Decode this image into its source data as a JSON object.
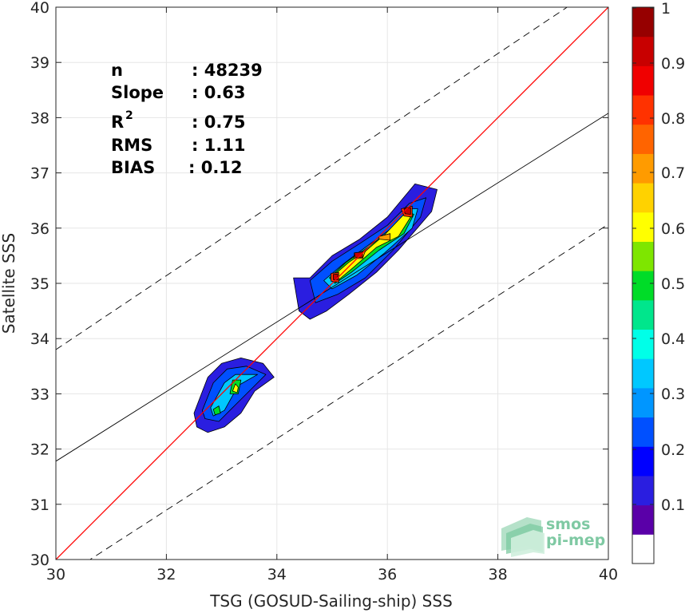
{
  "chart_data": {
    "type": "contour",
    "xlabel": "TSG (GOSUD-Sailing-ship) SSS",
    "ylabel": "Satellite SSS",
    "xlim": [
      30,
      40
    ],
    "ylim": [
      30,
      40
    ],
    "xticks": [
      "30",
      "32",
      "34",
      "36",
      "38",
      "40"
    ],
    "yticks": [
      "30",
      "31",
      "32",
      "33",
      "34",
      "35",
      "36",
      "37",
      "38",
      "39",
      "40"
    ],
    "grid": true,
    "one_to_one_line": {
      "x": [
        30,
        40
      ],
      "y": [
        30,
        40
      ],
      "color": "#ff0000"
    },
    "regression_line": {
      "x": [
        30,
        40
      ],
      "y": [
        31.78,
        38.08
      ],
      "color": "#000000"
    },
    "dashed_bounds": [
      {
        "x": [
          30,
          40
        ],
        "y": [
          33.8,
          40.5
        ]
      },
      {
        "x": [
          30,
          40
        ],
        "y": [
          29.6,
          36.07
        ]
      }
    ],
    "stats": [
      {
        "label": "n",
        "value": ": 48239"
      },
      {
        "label": "Slope",
        "value": ": 0.63"
      },
      {
        "label": "R",
        "sup": "2",
        "value": ": 0.75"
      },
      {
        "label": "RMS",
        "value": ": 1.11"
      },
      {
        "label": "BIAS",
        "value": ": 0.12"
      }
    ],
    "colorbar": {
      "ticks": [
        "0.1",
        "0.2",
        "0.3",
        "0.4",
        "0.5",
        "0.6",
        "0.7",
        "0.8",
        "0.9",
        "1"
      ],
      "colors": [
        "#ffffff",
        "#5a00a8",
        "#2a1ee0",
        "#0000ff",
        "#0050ff",
        "#0096ff",
        "#00c8ff",
        "#00ffe8",
        "#00e68c",
        "#00dc28",
        "#7ee600",
        "#ffff00",
        "#ffd200",
        "#ff9b00",
        "#ff6400",
        "#ff3200",
        "#f00000",
        "#c80000",
        "#960000"
      ]
    },
    "density_clusters": [
      {
        "center": [
          35.6,
          35.6
        ],
        "levels": [
          {
            "value": 0.05,
            "color": "#2a1ee0",
            "polygon": [
              [
                34.3,
                35.1
              ],
              [
                34.6,
                35.1
              ],
              [
                35.0,
                35.5
              ],
              [
                35.5,
                35.8
              ],
              [
                36.0,
                36.2
              ],
              [
                36.5,
                36.8
              ],
              [
                36.9,
                36.7
              ],
              [
                36.8,
                36.3
              ],
              [
                36.2,
                35.6
              ],
              [
                35.8,
                35.2
              ],
              [
                35.3,
                34.8
              ],
              [
                34.9,
                34.5
              ],
              [
                34.6,
                34.35
              ],
              [
                34.4,
                34.5
              ]
            ]
          },
          {
            "value": 0.2,
            "color": "#0050ff",
            "polygon": [
              [
                34.6,
                35.05
              ],
              [
                35.0,
                35.4
              ],
              [
                35.5,
                35.72
              ],
              [
                36.0,
                36.05
              ],
              [
                36.4,
                36.45
              ],
              [
                36.7,
                36.55
              ],
              [
                36.6,
                36.2
              ],
              [
                36.1,
                35.6
              ],
              [
                35.6,
                35.1
              ],
              [
                35.1,
                34.8
              ],
              [
                34.7,
                34.65
              ]
            ]
          },
          {
            "value": 0.35,
            "color": "#00c8ff",
            "polygon": [
              [
                34.85,
                35.05
              ],
              [
                35.2,
                35.35
              ],
              [
                35.6,
                35.65
              ],
              [
                36.05,
                35.98
              ],
              [
                36.4,
                36.35
              ],
              [
                36.55,
                36.35
              ],
              [
                36.45,
                36.0
              ],
              [
                35.95,
                35.55
              ],
              [
                35.45,
                35.15
              ],
              [
                35.0,
                34.9
              ]
            ]
          },
          {
            "value": 0.5,
            "color": "#00dc28",
            "polygon": [
              [
                34.95,
                35.1
              ],
              [
                35.25,
                35.38
              ],
              [
                35.6,
                35.62
              ],
              [
                36.0,
                35.92
              ],
              [
                36.35,
                36.3
              ],
              [
                36.48,
                36.25
              ],
              [
                36.3,
                35.9
              ],
              [
                35.85,
                35.6
              ],
              [
                35.35,
                35.2
              ],
              [
                35.05,
                35.0
              ]
            ]
          },
          {
            "value": 0.6,
            "color": "#ffff00",
            "polygon": [
              [
                35.0,
                35.12
              ],
              [
                35.3,
                35.38
              ],
              [
                35.6,
                35.58
              ],
              [
                35.95,
                35.88
              ],
              [
                36.3,
                36.25
              ],
              [
                36.42,
                36.2
              ],
              [
                36.2,
                35.85
              ],
              [
                35.8,
                35.65
              ],
              [
                35.4,
                35.3
              ],
              [
                35.1,
                35.05
              ]
            ]
          },
          {
            "value": 0.75,
            "color": "#ff9b00",
            "polygon": [
              [
                35.4,
                35.55
              ],
              [
                35.6,
                35.58
              ],
              [
                35.55,
                35.45
              ],
              [
                35.4,
                35.45
              ]
            ]
          },
          {
            "value": 0.75,
            "color": "#ff9b00",
            "polygon": [
              [
                35.85,
                35.85
              ],
              [
                36.05,
                35.9
              ],
              [
                36.05,
                35.78
              ],
              [
                35.85,
                35.8
              ]
            ]
          },
          {
            "value": 0.85,
            "color": "#ff3200",
            "polygon": [
              [
                36.25,
                36.35
              ],
              [
                36.45,
                36.4
              ],
              [
                36.45,
                36.2
              ],
              [
                36.3,
                36.22
              ]
            ]
          },
          {
            "value": 0.85,
            "color": "#ff3200",
            "polygon": [
              [
                34.98,
                35.18
              ],
              [
                35.12,
                35.2
              ],
              [
                35.12,
                35.02
              ],
              [
                34.98,
                35.04
              ]
            ]
          },
          {
            "value": 0.95,
            "color": "#c80000",
            "polygon": [
              [
                35.4,
                35.55
              ],
              [
                35.55,
                35.57
              ],
              [
                35.55,
                35.47
              ],
              [
                35.42,
                35.47
              ]
            ]
          },
          {
            "value": 0.95,
            "color": "#c80000",
            "polygon": [
              [
                36.3,
                36.35
              ],
              [
                36.42,
                36.37
              ],
              [
                36.42,
                36.25
              ],
              [
                36.32,
                36.26
              ]
            ]
          },
          {
            "value": 0.95,
            "color": "#c80000",
            "polygon": [
              [
                35.02,
                35.16
              ],
              [
                35.1,
                35.17
              ],
              [
                35.1,
                35.06
              ],
              [
                35.02,
                35.07
              ]
            ]
          }
        ]
      },
      {
        "center": [
          33.1,
          32.9
        ],
        "levels": [
          {
            "value": 0.05,
            "color": "#2a1ee0",
            "polygon": [
              [
                32.5,
                32.65
              ],
              [
                32.75,
                33.3
              ],
              [
                33.0,
                33.55
              ],
              [
                33.35,
                33.65
              ],
              [
                33.75,
                33.55
              ],
              [
                33.95,
                33.3
              ],
              [
                33.6,
                33.05
              ],
              [
                33.35,
                32.65
              ],
              [
                33.05,
                32.4
              ],
              [
                32.75,
                32.3
              ],
              [
                32.55,
                32.4
              ]
            ]
          },
          {
            "value": 0.2,
            "color": "#0050ff",
            "polygon": [
              [
                32.65,
                32.7
              ],
              [
                32.85,
                33.2
              ],
              [
                33.1,
                33.45
              ],
              [
                33.45,
                33.5
              ],
              [
                33.8,
                33.35
              ],
              [
                33.55,
                33.1
              ],
              [
                33.2,
                32.75
              ],
              [
                32.95,
                32.5
              ],
              [
                32.7,
                32.55
              ]
            ]
          },
          {
            "value": 0.35,
            "color": "#00c8ff",
            "polygon": [
              [
                32.8,
                32.75
              ],
              [
                33.05,
                33.2
              ],
              [
                33.25,
                33.35
              ],
              [
                33.65,
                33.35
              ],
              [
                33.3,
                33.15
              ],
              [
                33.05,
                32.7
              ],
              [
                32.85,
                32.6
              ]
            ]
          },
          {
            "value": 0.5,
            "color": "#00dc28",
            "polygon": [
              [
                33.15,
                33.0
              ],
              [
                33.2,
                33.25
              ],
              [
                33.35,
                33.25
              ],
              [
                33.3,
                33.0
              ]
            ]
          },
          {
            "value": 0.5,
            "color": "#00dc28",
            "polygon": [
              [
                32.85,
                32.72
              ],
              [
                32.95,
                32.78
              ],
              [
                32.98,
                32.65
              ],
              [
                32.88,
                32.62
              ]
            ]
          },
          {
            "value": 0.6,
            "color": "#ffff00",
            "polygon": [
              [
                33.2,
                33.05
              ],
              [
                33.25,
                33.18
              ],
              [
                33.3,
                33.12
              ],
              [
                33.28,
                33.02
              ]
            ]
          }
        ]
      }
    ]
  },
  "logo": {
    "line1": "smos",
    "line2": "pi-mep"
  }
}
